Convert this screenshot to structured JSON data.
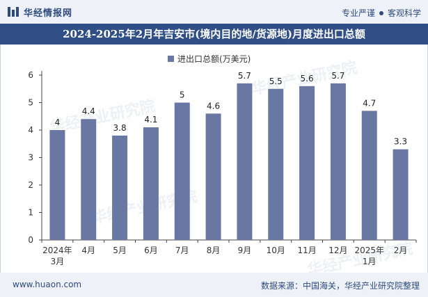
{
  "header": {
    "site_name": "华经情报网",
    "tag1": "专业严谨",
    "tag2": "客观科学"
  },
  "title": "2024-2025年2月年吉安市(境内目的地/货源地)月度进出口总额",
  "watermark": "华经产业研究院",
  "chart_data": {
    "type": "bar",
    "title": "2024-2025年2月年吉安市(境内目的地/货源地)月度进出口总额",
    "categories": [
      "2024年\n3月",
      "4月",
      "5月",
      "6月",
      "7月",
      "8月",
      "9月",
      "10月",
      "11月",
      "12月",
      "2025年\n1月",
      "2月"
    ],
    "series": [
      {
        "name": "进出口总额(万美元)",
        "values": [
          4,
          4.4,
          3.8,
          4.1,
          5,
          4.6,
          5.7,
          5.5,
          5.6,
          5.7,
          4.7,
          3.3
        ]
      }
    ],
    "ylim": [
      0,
      6
    ],
    "yticks": [
      0,
      1,
      2,
      3,
      4,
      5,
      6
    ],
    "xlabel": "",
    "ylabel": "",
    "legend": "top-center",
    "grid": false,
    "bar_color": "#6978a3"
  },
  "footer": {
    "url": "www.huaon.com",
    "source": "数据来源：中国海关，华经产业研究院整理"
  }
}
